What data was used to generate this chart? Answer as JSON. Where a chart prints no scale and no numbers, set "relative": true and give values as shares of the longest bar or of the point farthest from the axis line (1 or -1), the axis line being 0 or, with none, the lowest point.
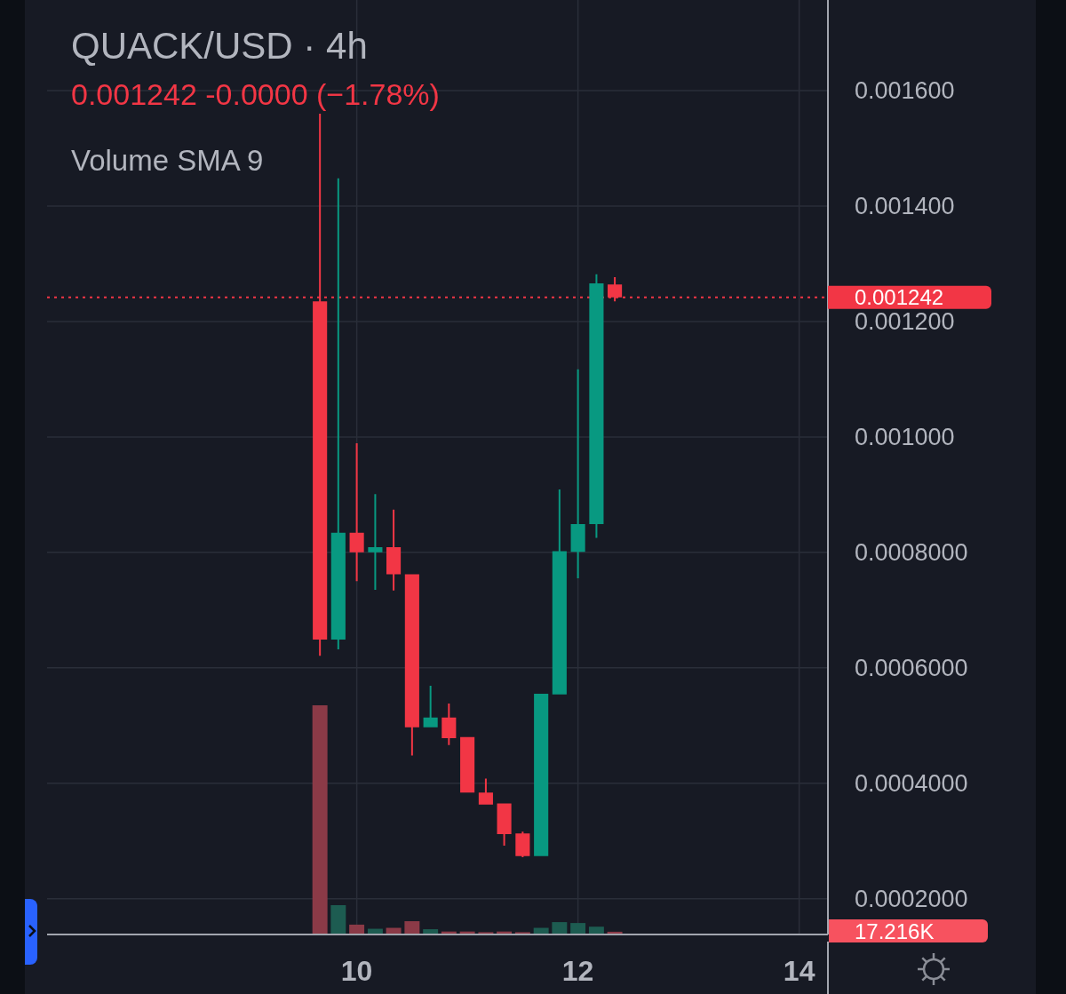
{
  "chart_data": [
    {
      "type": "candlestick",
      "title": "QUACK/USD · 4h",
      "subtitle": "0.001242 -0.0000 (−1.78%)",
      "x": [
        9.667,
        9.833,
        10,
        10.167,
        10.333,
        10.5,
        10.667,
        10.833,
        11,
        11.167,
        11.333,
        11.5,
        11.667,
        11.833,
        12,
        12.167,
        12.333
      ],
      "ohlc": [
        [
          0.001235,
          0.00156,
          0.000621,
          0.000649
        ],
        [
          0.000649,
          0.001448,
          0.000632,
          0.000834
        ],
        [
          0.000834,
          0.000989,
          0.00075,
          0.0008
        ],
        [
          0.0008,
          0.000901,
          0.000735,
          0.000809
        ],
        [
          0.000809,
          0.000874,
          0.000734,
          0.000762
        ],
        [
          0.000762,
          0.000762,
          0.000448,
          0.000497
        ],
        [
          0.000497,
          0.000569,
          0.000497,
          0.000514
        ],
        [
          0.000514,
          0.000538,
          0.000466,
          0.000478
        ],
        [
          0.00048,
          0.00048,
          0.000384,
          0.000384
        ],
        [
          0.000384,
          0.000408,
          0.000363,
          0.000363
        ],
        [
          0.000365,
          0.000365,
          0.000292,
          0.000312
        ],
        [
          0.000313,
          0.000316,
          0.000272,
          0.000274
        ],
        [
          0.000274,
          0.000555,
          0.000274,
          0.000555
        ],
        [
          0.000554,
          0.000909,
          0.000554,
          0.000802
        ],
        [
          0.000801,
          0.001117,
          0.000755,
          0.000849
        ],
        [
          0.000849,
          0.001282,
          0.000825,
          0.001266
        ],
        [
          0.001264,
          0.001277,
          0.001235,
          0.001242
        ]
      ],
      "colors": [
        "#f23645",
        "#089981",
        "#f23645",
        "#089981",
        "#f23645",
        "#f23645",
        "#089981",
        "#f23645",
        "#f23645",
        "#f23645",
        "#f23645",
        "#f23645",
        "#089981",
        "#089981",
        "#089981",
        "#089981",
        "#f23645"
      ],
      "xlim": [
        7.2,
        14.26
      ],
      "ylim": [
        0.000138,
        0.001757
      ],
      "xticks": [
        10,
        12,
        14
      ],
      "yticks": [
        {
          "value": 0.0002,
          "label": "0.0002000"
        },
        {
          "value": 0.0004,
          "label": "0.0004000"
        },
        {
          "value": 0.0006,
          "label": "0.0006000"
        },
        {
          "value": 0.0008,
          "label": "0.0008000"
        },
        {
          "value": 0.001,
          "label": "0.001000"
        },
        {
          "value": 0.0012,
          "label": "0.001200"
        },
        {
          "value": 0.0014,
          "label": "0.001400"
        },
        {
          "value": 0.0016,
          "label": "0.001600"
        }
      ],
      "grid": true,
      "ref_lines": [
        {
          "axis": "y",
          "value": 0.001242,
          "label": "0.001242",
          "color": "#f23645",
          "line_style": "dotted"
        }
      ]
    },
    {
      "type": "bar",
      "title": "Volume SMA 9",
      "x": [
        9.667,
        9.833,
        10,
        10.167,
        10.333,
        10.5,
        10.667,
        10.833,
        11,
        11.167,
        11.333,
        11.5,
        11.667,
        11.833,
        12,
        12.167,
        12.333
      ],
      "values": [
        1,
        0.128,
        0.043,
        0.025,
        0.029,
        0.058,
        0.023,
        0.013,
        0.013,
        0.01,
        0.013,
        0.01,
        0.029,
        0.054,
        0.05,
        0.034,
        0.012
      ],
      "colors": [
        "#8b3a47",
        "#1d5c51",
        "#8b3a47",
        "#1d5c51",
        "#8b3a47",
        "#8b3a47",
        "#1d5c51",
        "#8b3a47",
        "#8b3a47",
        "#8b3a47",
        "#8b3a47",
        "#8b3a47",
        "#1d5c51",
        "#1d5c51",
        "#1d5c51",
        "#1d5c51",
        "#8b3a47"
      ],
      "xlim": [
        7.2,
        14.26
      ],
      "relative": true,
      "annotations": [
        "17.216K"
      ]
    }
  ]
}
